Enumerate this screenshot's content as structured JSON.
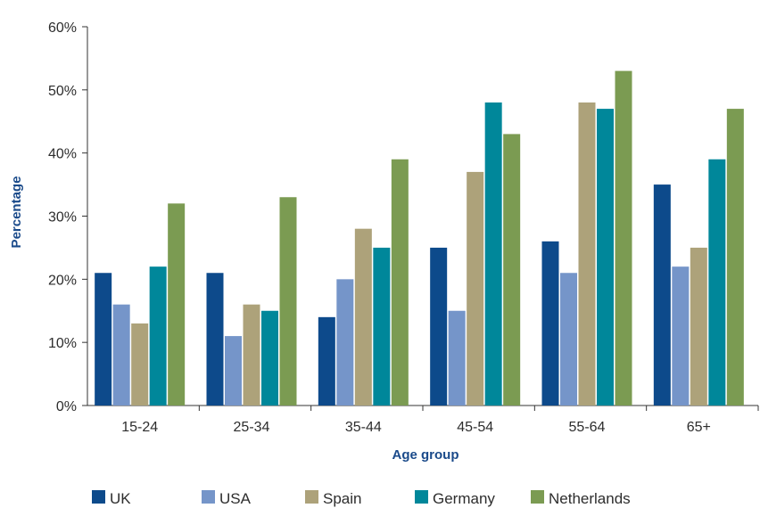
{
  "chart_data": {
    "type": "bar",
    "categories": [
      "15-24",
      "25-34",
      "35-44",
      "45-54",
      "55-64",
      "65+"
    ],
    "series": [
      {
        "name": "UK",
        "values": [
          21,
          21,
          14,
          25,
          26,
          35
        ],
        "color": "#0d4a8b"
      },
      {
        "name": "USA",
        "values": [
          16,
          11,
          20,
          15,
          21,
          22
        ],
        "color": "#7595c9"
      },
      {
        "name": "Spain",
        "values": [
          13,
          16,
          28,
          37,
          48,
          25
        ],
        "color": "#ada27a"
      },
      {
        "name": "Germany",
        "values": [
          22,
          15,
          25,
          48,
          47,
          39
        ],
        "color": "#00879a"
      },
      {
        "name": "Netherlands",
        "values": [
          32,
          33,
          39,
          43,
          53,
          47
        ],
        "color": "#7b9b52"
      }
    ],
    "yticks": [
      {
        "value": 0,
        "label": "0%"
      },
      {
        "value": 10,
        "label": "10%"
      },
      {
        "value": 20,
        "label": "20%"
      },
      {
        "value": 30,
        "label": "30%"
      },
      {
        "value": 40,
        "label": "40%"
      },
      {
        "value": 50,
        "label": "50%"
      },
      {
        "value": 60,
        "label": "60%"
      }
    ],
    "ylim": [
      0,
      60
    ],
    "xlabel": "Age group",
    "ylabel": "Percentage",
    "grid": false,
    "legend_position": "bottom"
  }
}
